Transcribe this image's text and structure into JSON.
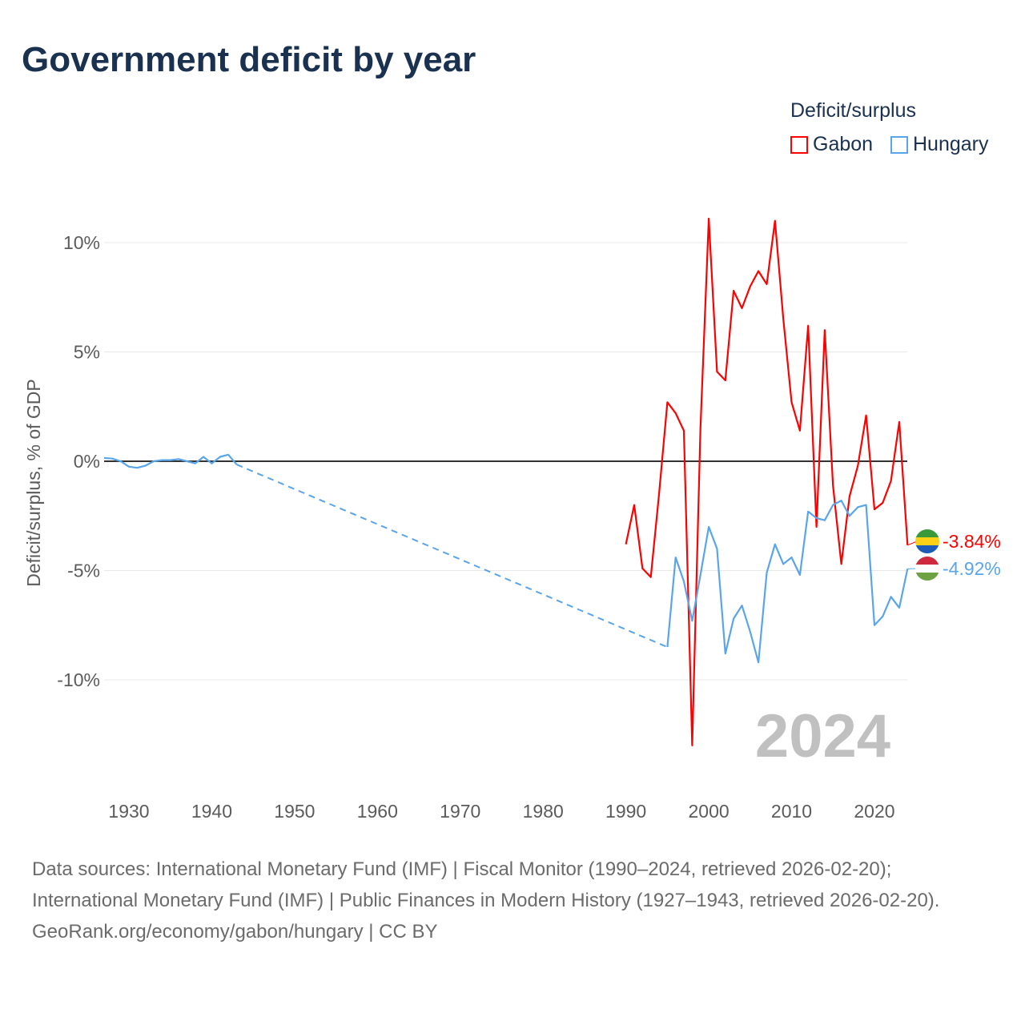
{
  "title": "Government deficit by year",
  "legend": {
    "title": "Deficit/surplus",
    "items": [
      {
        "name": "Gabon",
        "color": "#ff0000"
      },
      {
        "name": "Hungary",
        "color": "#5aa5ea"
      }
    ]
  },
  "chart_data": {
    "type": "line",
    "title": "Government deficit by year",
    "ylabel": "Deficit/surplus, % of GDP",
    "xlabel": "",
    "xlim": [
      1927,
      2024
    ],
    "ylim": [
      -14,
      12
    ],
    "x_ticks": [
      "1930",
      "1940",
      "1950",
      "1960",
      "1970",
      "1980",
      "1990",
      "2000",
      "2010",
      "2020"
    ],
    "y_ticks": [
      {
        "v": 10,
        "label": "10%"
      },
      {
        "v": 5,
        "label": "5%"
      },
      {
        "v": 0,
        "label": "0%"
      },
      {
        "v": -5,
        "label": "-5%"
      },
      {
        "v": -10,
        "label": "-10%"
      }
    ],
    "year_label": "2024",
    "series": [
      {
        "name": "Gabon",
        "color": "#ff0000",
        "end_label": "-3.84%",
        "x": [
          1990,
          1991,
          1992,
          1993,
          1994,
          1995,
          1996,
          1997,
          1998,
          1999,
          2000,
          2001,
          2002,
          2003,
          2004,
          2005,
          2006,
          2007,
          2008,
          2009,
          2010,
          2011,
          2012,
          2013,
          2014,
          2015,
          2016,
          2017,
          2018,
          2019,
          2020,
          2021,
          2022,
          2023,
          2024
        ],
        "y": [
          -3.8,
          -2.0,
          -4.9,
          -5.3,
          -1.5,
          2.7,
          2.2,
          1.4,
          -13.0,
          1.5,
          11.1,
          4.1,
          3.7,
          7.8,
          7.0,
          8.0,
          8.7,
          8.1,
          11.0,
          6.5,
          2.7,
          1.4,
          6.2,
          -3.0,
          6.0,
          -1.1,
          -4.7,
          -1.6,
          -0.2,
          2.1,
          -2.2,
          -1.9,
          -0.9,
          1.8,
          -3.84
        ]
      },
      {
        "name": "Hungary",
        "color": "#5aa5ea",
        "end_label": "-4.92%",
        "x": [
          1927,
          1928,
          1929,
          1930,
          1931,
          1932,
          1933,
          1934,
          1935,
          1936,
          1937,
          1938,
          1939,
          1940,
          1941,
          1942,
          1943,
          1995,
          1996,
          1997,
          1998,
          1999,
          2000,
          2001,
          2002,
          2003,
          2004,
          2005,
          2006,
          2007,
          2008,
          2009,
          2010,
          2011,
          2012,
          2013,
          2014,
          2015,
          2016,
          2017,
          2018,
          2019,
          2020,
          2021,
          2022,
          2023,
          2024
        ],
        "y": [
          0.15,
          0.12,
          0.0,
          -0.25,
          -0.3,
          -0.2,
          0.0,
          0.05,
          0.05,
          0.1,
          0.0,
          -0.1,
          0.2,
          -0.1,
          0.2,
          0.3,
          -0.15,
          -8.5,
          -4.4,
          -5.5,
          -7.3,
          -5.2,
          -3.0,
          -4.0,
          -8.8,
          -7.2,
          -6.6,
          -7.8,
          -9.2,
          -5.1,
          -3.8,
          -4.7,
          -4.4,
          -5.2,
          -2.3,
          -2.6,
          -2.7,
          -2.0,
          -1.8,
          -2.5,
          -2.1,
          -2.0,
          -7.5,
          -7.1,
          -6.2,
          -6.7,
          -4.92
        ]
      }
    ]
  },
  "sources": {
    "line1": "Data sources: International Monetary Fund (IMF) | Fiscal Monitor (1990–2024, retrieved 2026-02-20); International Monetary Fund (IMF) | Public Finances in Modern History (1927–1943, retrieved 2026-02-20).",
    "line2": "GeoRank.org/economy/gabon/hungary | CC BY"
  }
}
